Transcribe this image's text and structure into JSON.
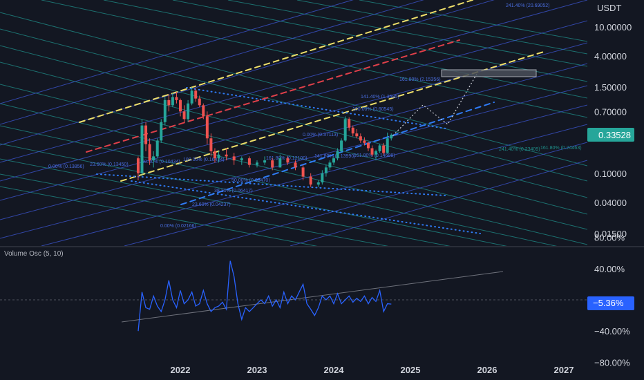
{
  "colors": {
    "background": "#131722",
    "up": "#26a69a",
    "down": "#ef5350",
    "osc": "#2962ff",
    "yellow": "#f0e06a",
    "red": "#e0404a",
    "blue": "#2f7bf5",
    "fib_teal": "#1f8f8a",
    "fib_blue": "#3a52c8",
    "price_badge": "#26a69a",
    "osc_badge": "#2962ff"
  },
  "price_pane": {
    "currency": "USDT",
    "price_ticks": [
      "10.00000",
      "4.00000",
      "1.50000",
      "0.70000",
      "0.10000",
      "0.04000",
      "0.01500"
    ],
    "last_price": "0.33528",
    "fib_labels": [
      "241.40% (20.69052)",
      "161.80% (2.15356)",
      "141.40% (1.3695)",
      "100.00% (0.60545)",
      "0.00% (0.37113)",
      "0.00% (0.13856)",
      "23.60% (0.13450)",
      "50.00% (0.10434)",
      "100.00% (0.16434)",
      "161.80% (0.12100)",
      "241.40% (0.23409)",
      "161.80% (0.24463)",
      "50.00% (0.08470)",
      "38.20% (0.06417)",
      "23.60% (0.04237)",
      "0.00% (0.02166)",
      "141.80% (0.13990)",
      "161.80% (0.14688)"
    ]
  },
  "osc_pane": {
    "title": "Volume Osc (5, 10)",
    "ticks": [
      "80.00%",
      "40.00%",
      "−40.00%",
      "−80.00%"
    ],
    "last_value": "−5.36%"
  },
  "time_axis": {
    "labels": [
      "2022",
      "2023",
      "2024",
      "2025",
      "2026",
      "2027"
    ]
  },
  "chart_data": {
    "type": "candlestick",
    "scale": "log",
    "currency": "USDT",
    "x_axis_labels": [
      "2022",
      "2023",
      "2024",
      "2025",
      "2026",
      "2027"
    ],
    "price_axis_ticks": [
      10,
      4,
      1.5,
      0.7,
      0.1,
      0.04,
      0.015
    ],
    "last_price": 0.33528,
    "weekly_ohlc": [
      {
        "t": 2021.45,
        "o": 0.16,
        "h": 0.17,
        "l": 0.08,
        "c": 0.1
      },
      {
        "t": 2021.5,
        "o": 0.1,
        "h": 0.55,
        "l": 0.09,
        "c": 0.45
      },
      {
        "t": 2021.55,
        "o": 0.45,
        "h": 0.5,
        "l": 0.2,
        "c": 0.25
      },
      {
        "t": 2021.6,
        "o": 0.25,
        "h": 0.3,
        "l": 0.13,
        "c": 0.15
      },
      {
        "t": 2021.65,
        "o": 0.15,
        "h": 0.2,
        "l": 0.12,
        "c": 0.17
      },
      {
        "t": 2021.7,
        "o": 0.17,
        "h": 0.3,
        "l": 0.16,
        "c": 0.28
      },
      {
        "t": 2021.75,
        "o": 0.28,
        "h": 0.55,
        "l": 0.26,
        "c": 0.5
      },
      {
        "t": 2021.8,
        "o": 0.5,
        "h": 1.1,
        "l": 0.45,
        "c": 1.0
      },
      {
        "t": 2021.85,
        "o": 1.0,
        "h": 1.2,
        "l": 0.7,
        "c": 0.85
      },
      {
        "t": 2021.9,
        "o": 0.85,
        "h": 1.25,
        "l": 0.8,
        "c": 1.1
      },
      {
        "t": 2021.95,
        "o": 1.1,
        "h": 1.3,
        "l": 0.9,
        "c": 1.0
      },
      {
        "t": 2022.0,
        "o": 1.0,
        "h": 1.05,
        "l": 0.6,
        "c": 0.7
      },
      {
        "t": 2022.05,
        "o": 0.7,
        "h": 0.85,
        "l": 0.5,
        "c": 0.55
      },
      {
        "t": 2022.1,
        "o": 0.55,
        "h": 1.0,
        "l": 0.5,
        "c": 0.9
      },
      {
        "t": 2022.15,
        "o": 0.9,
        "h": 1.5,
        "l": 0.85,
        "c": 1.35
      },
      {
        "t": 2022.2,
        "o": 1.35,
        "h": 1.45,
        "l": 0.95,
        "c": 1.05
      },
      {
        "t": 2022.25,
        "o": 1.05,
        "h": 1.15,
        "l": 0.8,
        "c": 0.85
      },
      {
        "t": 2022.3,
        "o": 0.85,
        "h": 0.9,
        "l": 0.55,
        "c": 0.6
      },
      {
        "t": 2022.35,
        "o": 0.6,
        "h": 0.7,
        "l": 0.25,
        "c": 0.3
      },
      {
        "t": 2022.4,
        "o": 0.3,
        "h": 0.35,
        "l": 0.17,
        "c": 0.2
      },
      {
        "t": 2022.45,
        "o": 0.2,
        "h": 0.22,
        "l": 0.14,
        "c": 0.16
      },
      {
        "t": 2022.5,
        "o": 0.16,
        "h": 0.2,
        "l": 0.14,
        "c": 0.18
      },
      {
        "t": 2022.6,
        "o": 0.18,
        "h": 0.22,
        "l": 0.15,
        "c": 0.17
      },
      {
        "t": 2022.7,
        "o": 0.17,
        "h": 0.19,
        "l": 0.13,
        "c": 0.15
      },
      {
        "t": 2022.8,
        "o": 0.15,
        "h": 0.17,
        "l": 0.13,
        "c": 0.16
      },
      {
        "t": 2022.9,
        "o": 0.16,
        "h": 0.17,
        "l": 0.12,
        "c": 0.13
      },
      {
        "t": 2023.0,
        "o": 0.13,
        "h": 0.15,
        "l": 0.12,
        "c": 0.14
      },
      {
        "t": 2023.1,
        "o": 0.14,
        "h": 0.17,
        "l": 0.13,
        "c": 0.15
      },
      {
        "t": 2023.2,
        "o": 0.15,
        "h": 0.16,
        "l": 0.11,
        "c": 0.12
      },
      {
        "t": 2023.3,
        "o": 0.12,
        "h": 0.18,
        "l": 0.12,
        "c": 0.16
      },
      {
        "t": 2023.4,
        "o": 0.16,
        "h": 0.17,
        "l": 0.13,
        "c": 0.14
      },
      {
        "t": 2023.5,
        "o": 0.14,
        "h": 0.15,
        "l": 0.11,
        "c": 0.12
      },
      {
        "t": 2023.6,
        "o": 0.12,
        "h": 0.13,
        "l": 0.08,
        "c": 0.09
      },
      {
        "t": 2023.7,
        "o": 0.09,
        "h": 0.1,
        "l": 0.065,
        "c": 0.07
      },
      {
        "t": 2023.8,
        "o": 0.07,
        "h": 0.08,
        "l": 0.065,
        "c": 0.075
      },
      {
        "t": 2023.85,
        "o": 0.075,
        "h": 0.11,
        "l": 0.07,
        "c": 0.1
      },
      {
        "t": 2023.9,
        "o": 0.1,
        "h": 0.13,
        "l": 0.09,
        "c": 0.12
      },
      {
        "t": 2023.95,
        "o": 0.12,
        "h": 0.15,
        "l": 0.11,
        "c": 0.14
      },
      {
        "t": 2024.0,
        "o": 0.14,
        "h": 0.17,
        "l": 0.13,
        "c": 0.16
      },
      {
        "t": 2024.05,
        "o": 0.16,
        "h": 0.22,
        "l": 0.15,
        "c": 0.2
      },
      {
        "t": 2024.1,
        "o": 0.2,
        "h": 0.3,
        "l": 0.19,
        "c": 0.28
      },
      {
        "t": 2024.15,
        "o": 0.28,
        "h": 0.6,
        "l": 0.27,
        "c": 0.55
      },
      {
        "t": 2024.2,
        "o": 0.55,
        "h": 0.58,
        "l": 0.38,
        "c": 0.42
      },
      {
        "t": 2024.25,
        "o": 0.42,
        "h": 0.45,
        "l": 0.32,
        "c": 0.35
      },
      {
        "t": 2024.3,
        "o": 0.35,
        "h": 0.4,
        "l": 0.3,
        "c": 0.32
      },
      {
        "t": 2024.35,
        "o": 0.32,
        "h": 0.35,
        "l": 0.26,
        "c": 0.28
      },
      {
        "t": 2024.4,
        "o": 0.28,
        "h": 0.31,
        "l": 0.24,
        "c": 0.26
      },
      {
        "t": 2024.45,
        "o": 0.26,
        "h": 0.27,
        "l": 0.2,
        "c": 0.22
      },
      {
        "t": 2024.5,
        "o": 0.22,
        "h": 0.24,
        "l": 0.17,
        "c": 0.18
      },
      {
        "t": 2024.55,
        "o": 0.18,
        "h": 0.21,
        "l": 0.15,
        "c": 0.2
      },
      {
        "t": 2024.6,
        "o": 0.2,
        "h": 0.25,
        "l": 0.19,
        "c": 0.24
      },
      {
        "t": 2024.65,
        "o": 0.24,
        "h": 0.26,
        "l": 0.18,
        "c": 0.19
      },
      {
        "t": 2024.7,
        "o": 0.19,
        "h": 0.36,
        "l": 0.185,
        "c": 0.3
      },
      {
        "t": 2024.75,
        "o": 0.3,
        "h": 0.35,
        "l": 0.28,
        "c": 0.33528
      }
    ],
    "volume_osc": {
      "name": "Volume Osc (5, 10)",
      "y_range": [
        -80,
        80
      ],
      "last_value": -5.36,
      "points": [
        [
          2021.45,
          -40
        ],
        [
          2021.5,
          10
        ],
        [
          2021.55,
          -10
        ],
        [
          2021.6,
          -12
        ],
        [
          2021.65,
          5
        ],
        [
          2021.7,
          -8
        ],
        [
          2021.75,
          -15
        ],
        [
          2021.8,
          0
        ],
        [
          2021.85,
          25
        ],
        [
          2021.9,
          0
        ],
        [
          2021.95,
          -10
        ],
        [
          2022.0,
          12
        ],
        [
          2022.05,
          -5
        ],
        [
          2022.1,
          0
        ],
        [
          2022.15,
          10
        ],
        [
          2022.2,
          -8
        ],
        [
          2022.25,
          -5
        ],
        [
          2022.3,
          12
        ],
        [
          2022.35,
          -5
        ],
        [
          2022.4,
          -15
        ],
        [
          2022.45,
          -10
        ],
        [
          2022.5,
          -8
        ],
        [
          2022.55,
          -3
        ],
        [
          2022.6,
          -12
        ],
        [
          2022.65,
          50
        ],
        [
          2022.7,
          30
        ],
        [
          2022.75,
          -5
        ],
        [
          2022.8,
          -25
        ],
        [
          2022.85,
          -10
        ],
        [
          2022.9,
          -15
        ],
        [
          2022.95,
          -10
        ],
        [
          2023.0,
          -5
        ],
        [
          2023.05,
          0
        ],
        [
          2023.1,
          -5
        ],
        [
          2023.15,
          5
        ],
        [
          2023.2,
          -8
        ],
        [
          2023.25,
          0
        ],
        [
          2023.3,
          -10
        ],
        [
          2023.35,
          10
        ],
        [
          2023.4,
          -5
        ],
        [
          2023.45,
          5
        ],
        [
          2023.5,
          0
        ],
        [
          2023.55,
          10
        ],
        [
          2023.6,
          20
        ],
        [
          2023.65,
          -5
        ],
        [
          2023.7,
          -12
        ],
        [
          2023.75,
          -20
        ],
        [
          2023.8,
          -10
        ],
        [
          2023.85,
          5
        ],
        [
          2023.9,
          0
        ],
        [
          2023.95,
          5
        ],
        [
          2024.0,
          -5
        ],
        [
          2024.05,
          8
        ],
        [
          2024.1,
          -5
        ],
        [
          2024.15,
          0
        ],
        [
          2024.2,
          5
        ],
        [
          2024.25,
          -3
        ],
        [
          2024.3,
          2
        ],
        [
          2024.35,
          -2
        ],
        [
          2024.4,
          5
        ],
        [
          2024.45,
          -5
        ],
        [
          2024.5,
          3
        ],
        [
          2024.55,
          -2
        ],
        [
          2024.6,
          12
        ],
        [
          2024.65,
          -15
        ],
        [
          2024.7,
          -5
        ],
        [
          2024.75,
          -5.36
        ]
      ]
    }
  }
}
